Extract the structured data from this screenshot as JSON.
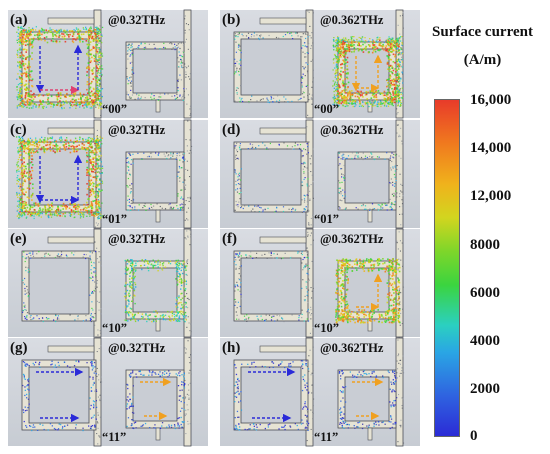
{
  "panels": [
    {
      "letter": "(a)",
      "freq": "@0.32THz",
      "state": "“00”"
    },
    {
      "letter": "(b)",
      "freq": "@0.362THz",
      "state": "“00”"
    },
    {
      "letter": "(c)",
      "freq": "@0.32THz",
      "state": "“01”"
    },
    {
      "letter": "(d)",
      "freq": "@0.362THz",
      "state": "“01”"
    },
    {
      "letter": "(e)",
      "freq": "@0.32THz",
      "state": "“10”"
    },
    {
      "letter": "(f)",
      "freq": "@0.362THz",
      "state": "“10”"
    },
    {
      "letter": "(g)",
      "freq": "@0.32THz",
      "state": "“11”"
    },
    {
      "letter": "(h)",
      "freq": "@0.362THz",
      "state": "“11”"
    }
  ],
  "legend": {
    "title_line1": "Surface current",
    "title_line2": "(A/m)",
    "ticks": [
      "16,000",
      "14,000",
      "12,000",
      "8000",
      "6000",
      "4000",
      "2000",
      "0"
    ]
  },
  "colors": {
    "panel_bg": "#d2d6dc",
    "metal": "#e6e3d4",
    "dark_edge": "#4a4d55",
    "blue_arrow": "#2a2ad8",
    "orange_arrow": "#f0a020",
    "pink_arrow": "#e04070"
  }
}
